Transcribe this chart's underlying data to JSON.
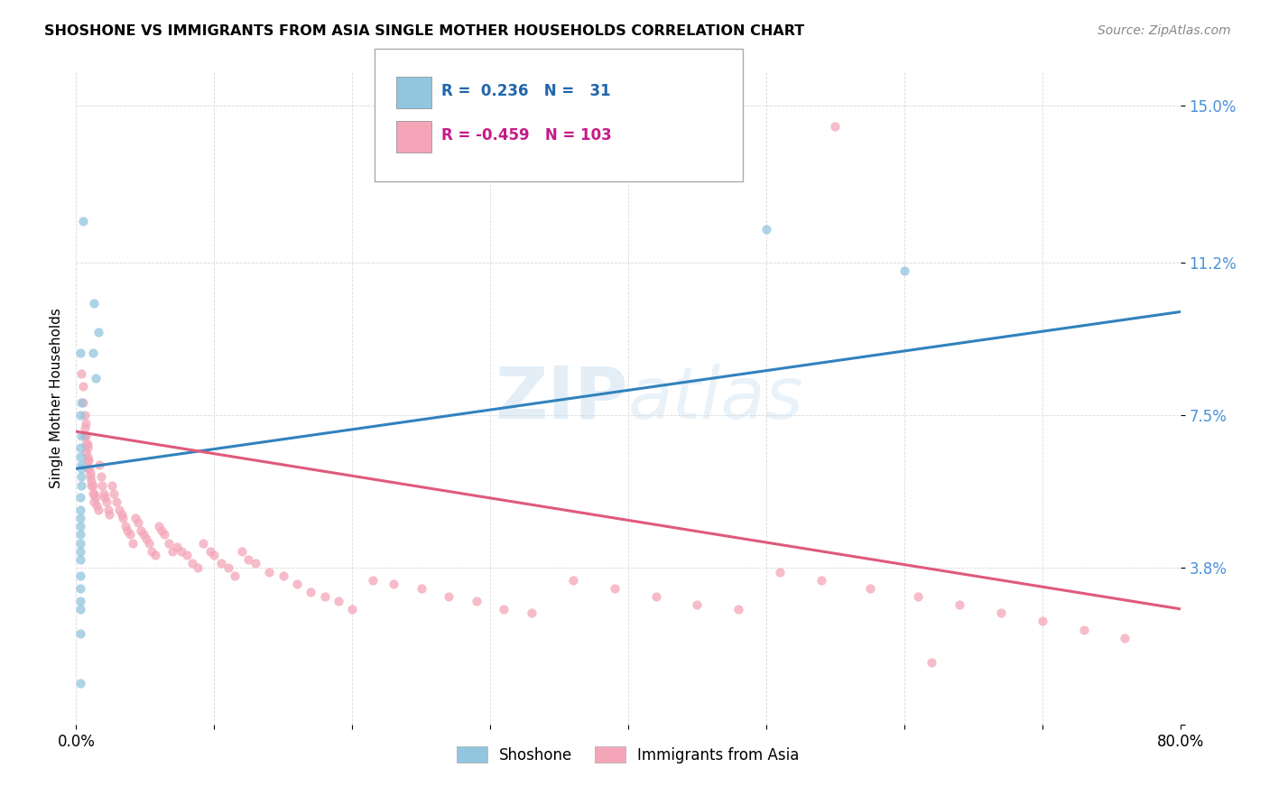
{
  "title": "SHOSHONE VS IMMIGRANTS FROM ASIA SINGLE MOTHER HOUSEHOLDS CORRELATION CHART",
  "source": "Source: ZipAtlas.com",
  "ylabel": "Single Mother Households",
  "yticks": [
    0.0,
    0.038,
    0.075,
    0.112,
    0.15
  ],
  "ytick_labels": [
    "",
    "3.8%",
    "7.5%",
    "11.2%",
    "15.0%"
  ],
  "xlim": [
    0.0,
    0.8
  ],
  "ylim": [
    0.0,
    0.158
  ],
  "watermark": "ZIPatlas",
  "blue_color": "#92c5de",
  "pink_color": "#f4a6b8",
  "blue_line_color": "#3182bd",
  "pink_line_color": "#e05a7a",
  "blue_r": 0.236,
  "blue_n": 31,
  "pink_r": -0.459,
  "pink_n": 103,
  "blue_line_x0": 0.0,
  "blue_line_y0": 0.062,
  "blue_line_x1": 0.8,
  "blue_line_y1": 0.1,
  "pink_line_x0": 0.0,
  "pink_line_y0": 0.071,
  "pink_line_x1": 0.8,
  "pink_line_y1": 0.028,
  "shoshone_x": [
    0.005,
    0.013,
    0.016,
    0.012,
    0.014,
    0.003,
    0.004,
    0.003,
    0.004,
    0.003,
    0.003,
    0.004,
    0.004,
    0.004,
    0.004,
    0.003,
    0.003,
    0.003,
    0.003,
    0.003,
    0.003,
    0.003,
    0.003,
    0.003,
    0.003,
    0.003,
    0.003,
    0.003,
    0.003,
    0.6,
    0.5
  ],
  "shoshone_y": [
    0.122,
    0.102,
    0.095,
    0.09,
    0.084,
    0.09,
    0.078,
    0.075,
    0.07,
    0.067,
    0.065,
    0.063,
    0.062,
    0.06,
    0.058,
    0.055,
    0.052,
    0.05,
    0.048,
    0.046,
    0.044,
    0.042,
    0.04,
    0.036,
    0.033,
    0.03,
    0.028,
    0.022,
    0.01,
    0.11,
    0.12
  ],
  "asia_x": [
    0.004,
    0.005,
    0.005,
    0.006,
    0.007,
    0.007,
    0.008,
    0.008,
    0.008,
    0.009,
    0.009,
    0.01,
    0.011,
    0.012,
    0.013,
    0.014,
    0.015,
    0.016,
    0.017,
    0.018,
    0.019,
    0.02,
    0.021,
    0.022,
    0.023,
    0.024,
    0.026,
    0.027,
    0.029,
    0.031,
    0.033,
    0.034,
    0.036,
    0.037,
    0.039,
    0.041,
    0.043,
    0.045,
    0.047,
    0.049,
    0.051,
    0.053,
    0.055,
    0.057,
    0.06,
    0.062,
    0.064,
    0.067,
    0.07,
    0.073,
    0.076,
    0.08,
    0.084,
    0.088,
    0.092,
    0.097,
    0.1,
    0.105,
    0.11,
    0.115,
    0.12,
    0.125,
    0.13,
    0.14,
    0.15,
    0.16,
    0.17,
    0.18,
    0.19,
    0.2,
    0.215,
    0.23,
    0.25,
    0.27,
    0.29,
    0.31,
    0.33,
    0.36,
    0.39,
    0.42,
    0.45,
    0.48,
    0.51,
    0.54,
    0.575,
    0.61,
    0.64,
    0.67,
    0.7,
    0.73,
    0.006,
    0.006,
    0.007,
    0.007,
    0.008,
    0.009,
    0.01,
    0.011,
    0.012,
    0.013,
    0.76,
    0.55,
    0.62
  ],
  "asia_y": [
    0.085,
    0.082,
    0.078,
    0.075,
    0.073,
    0.07,
    0.068,
    0.067,
    0.065,
    0.064,
    0.062,
    0.061,
    0.059,
    0.058,
    0.056,
    0.055,
    0.053,
    0.052,
    0.063,
    0.06,
    0.058,
    0.056,
    0.055,
    0.054,
    0.052,
    0.051,
    0.058,
    0.056,
    0.054,
    0.052,
    0.051,
    0.05,
    0.048,
    0.047,
    0.046,
    0.044,
    0.05,
    0.049,
    0.047,
    0.046,
    0.045,
    0.044,
    0.042,
    0.041,
    0.048,
    0.047,
    0.046,
    0.044,
    0.042,
    0.043,
    0.042,
    0.041,
    0.039,
    0.038,
    0.044,
    0.042,
    0.041,
    0.039,
    0.038,
    0.036,
    0.042,
    0.04,
    0.039,
    0.037,
    0.036,
    0.034,
    0.032,
    0.031,
    0.03,
    0.028,
    0.035,
    0.034,
    0.033,
    0.031,
    0.03,
    0.028,
    0.027,
    0.035,
    0.033,
    0.031,
    0.029,
    0.028,
    0.037,
    0.035,
    0.033,
    0.031,
    0.029,
    0.027,
    0.025,
    0.023,
    0.072,
    0.07,
    0.068,
    0.066,
    0.064,
    0.062,
    0.06,
    0.058,
    0.056,
    0.054,
    0.021,
    0.145,
    0.015
  ]
}
